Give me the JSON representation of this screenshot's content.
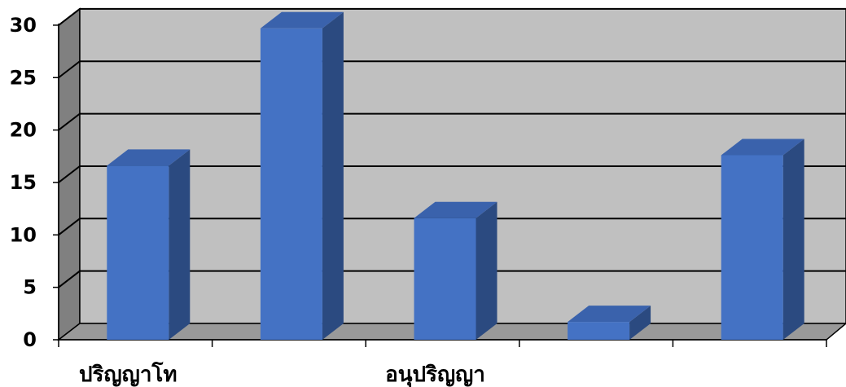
{
  "chart_data": {
    "type": "bar",
    "style": "3d-column",
    "categories": [
      "ปริญญาโท",
      "",
      "อนุปริญญา",
      "",
      ""
    ],
    "values": [
      16.6,
      29.7,
      11.6,
      1.7,
      17.6
    ],
    "ylim": [
      0,
      30
    ],
    "yticks": [
      0,
      5,
      10,
      15,
      20,
      25,
      30
    ],
    "grid": true,
    "legend": "none",
    "colors": {
      "bar_front": "#4472C4",
      "bar_side": "#2B4A80",
      "bar_top": "#3A62AC",
      "wall": "#C0C0C0",
      "left_wall": "#808080",
      "floor": "#999999"
    }
  }
}
